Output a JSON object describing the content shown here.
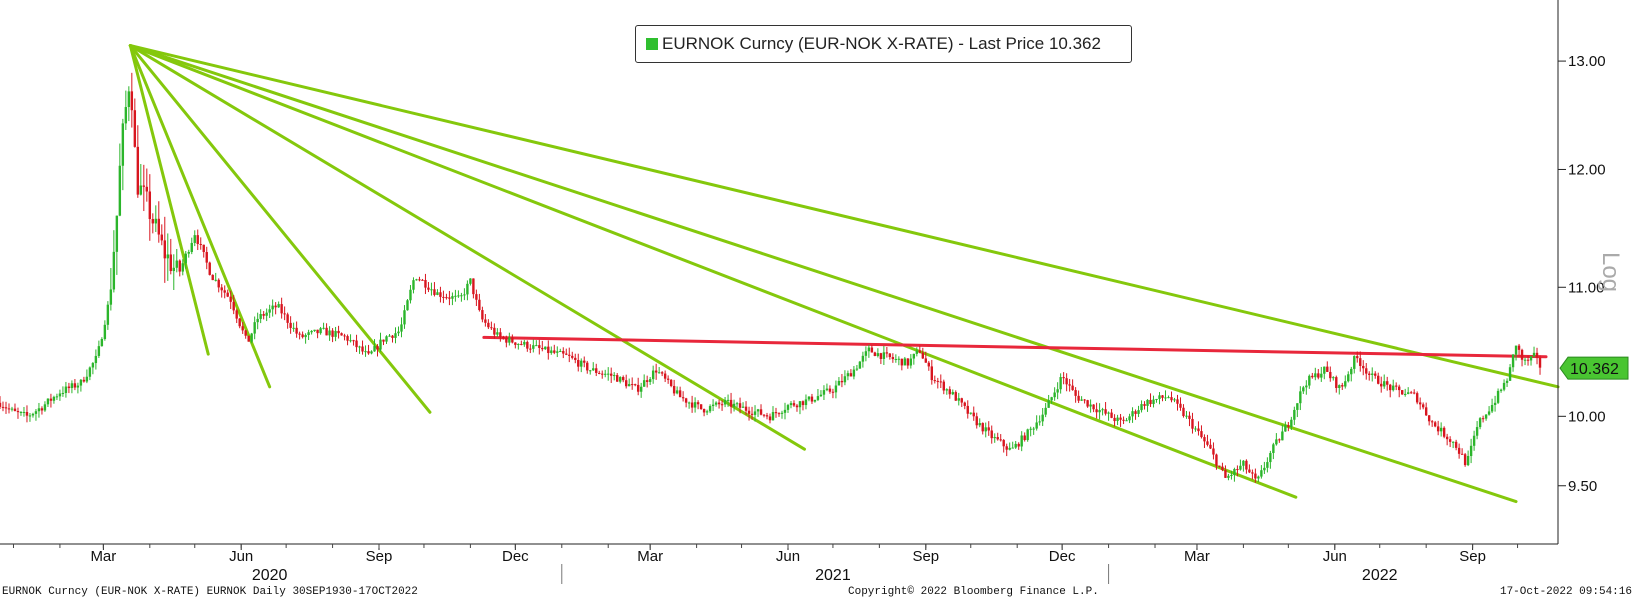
{
  "chart_data": {
    "type": "candlestick",
    "title": "EURNOK Curncy (EUR-NOK X-RATE) - Last Price 10.362",
    "scale_label": "Log",
    "last_price": 10.362,
    "last_price_label": "10.362",
    "y_scale": "log",
    "ylim": [
      9.1,
      13.6
    ],
    "y_ticks": [
      {
        "value": 13.0,
        "label": "13.00"
      },
      {
        "value": 12.0,
        "label": "12.00"
      },
      {
        "value": 11.0,
        "label": "11.00"
      },
      {
        "value": 10.0,
        "label": "10.00"
      },
      {
        "value": 9.5,
        "label": "9.50"
      }
    ],
    "x_start": "2019-12-23",
    "x_end": "2022-10-28",
    "x_ticks": [
      {
        "date": "2020-03-01",
        "label": "Mar"
      },
      {
        "date": "2020-06-01",
        "label": "Jun"
      },
      {
        "date": "2020-09-01",
        "label": "Sep"
      },
      {
        "date": "2020-12-01",
        "label": "Dec"
      },
      {
        "date": "2021-03-01",
        "label": "Mar"
      },
      {
        "date": "2021-06-01",
        "label": "Jun"
      },
      {
        "date": "2021-09-01",
        "label": "Sep"
      },
      {
        "date": "2021-12-01",
        "label": "Dec"
      },
      {
        "date": "2022-03-01",
        "label": "Mar"
      },
      {
        "date": "2022-06-01",
        "label": "Jun"
      },
      {
        "date": "2022-09-01",
        "label": "Sep"
      }
    ],
    "years": [
      {
        "label": "2020",
        "center": "2020-06-20"
      },
      {
        "label": "2021",
        "center": "2021-07-01"
      },
      {
        "label": "2022",
        "center": "2022-07-01"
      }
    ],
    "year_separators": [
      "2021-01-01",
      "2022-01-01"
    ],
    "price_path": [
      [
        "2019-12-23",
        10.1
      ],
      [
        "2020-01-01",
        10.03
      ],
      [
        "2020-01-10",
        10.0
      ],
      [
        "2020-01-20",
        10.07
      ],
      [
        "2020-02-01",
        10.18
      ],
      [
        "2020-02-15",
        10.25
      ],
      [
        "2020-02-26",
        10.45
      ],
      [
        "2020-03-05",
        10.9
      ],
      [
        "2020-03-10",
        11.6
      ],
      [
        "2020-03-13",
        12.2
      ],
      [
        "2020-03-16",
        12.55
      ],
      [
        "2020-03-19",
        12.9
      ],
      [
        "2020-03-23",
        11.9
      ],
      [
        "2020-03-30",
        11.7
      ],
      [
        "2020-04-10",
        11.3
      ],
      [
        "2020-04-20",
        11.1
      ],
      [
        "2020-05-01",
        11.45
      ],
      [
        "2020-05-12",
        11.1
      ],
      [
        "2020-05-25",
        10.9
      ],
      [
        "2020-06-05",
        10.55
      ],
      [
        "2020-06-12",
        10.75
      ],
      [
        "2020-06-25",
        10.85
      ],
      [
        "2020-07-10",
        10.6
      ],
      [
        "2020-07-25",
        10.65
      ],
      [
        "2020-08-10",
        10.6
      ],
      [
        "2020-08-25",
        10.45
      ],
      [
        "2020-09-05",
        10.6
      ],
      [
        "2020-09-15",
        10.65
      ],
      [
        "2020-09-25",
        11.1
      ],
      [
        "2020-10-10",
        10.95
      ],
      [
        "2020-10-25",
        10.9
      ],
      [
        "2020-11-01",
        11.05
      ],
      [
        "2020-11-08",
        10.75
      ],
      [
        "2020-11-20",
        10.6
      ],
      [
        "2020-12-05",
        10.55
      ],
      [
        "2020-12-20",
        10.5
      ],
      [
        "2021-01-05",
        10.45
      ],
      [
        "2021-01-20",
        10.35
      ],
      [
        "2021-02-05",
        10.3
      ],
      [
        "2021-02-20",
        10.2
      ],
      [
        "2021-03-05",
        10.35
      ],
      [
        "2021-03-20",
        10.15
      ],
      [
        "2021-04-05",
        10.05
      ],
      [
        "2021-04-20",
        10.1
      ],
      [
        "2021-05-05",
        10.05
      ],
      [
        "2021-05-20",
        10.0
      ],
      [
        "2021-06-01",
        10.08
      ],
      [
        "2021-06-15",
        10.12
      ],
      [
        "2021-07-01",
        10.2
      ],
      [
        "2021-07-15",
        10.35
      ],
      [
        "2021-07-25",
        10.5
      ],
      [
        "2021-08-05",
        10.45
      ],
      [
        "2021-08-20",
        10.4
      ],
      [
        "2021-08-28",
        10.5
      ],
      [
        "2021-09-05",
        10.3
      ],
      [
        "2021-09-20",
        10.15
      ],
      [
        "2021-10-01",
        10.0
      ],
      [
        "2021-10-15",
        9.85
      ],
      [
        "2021-10-28",
        9.75
      ],
      [
        "2021-11-10",
        9.9
      ],
      [
        "2021-11-20",
        10.05
      ],
      [
        "2021-12-01",
        10.3
      ],
      [
        "2021-12-10",
        10.15
      ],
      [
        "2021-12-25",
        10.05
      ],
      [
        "2022-01-10",
        9.95
      ],
      [
        "2022-01-25",
        10.1
      ],
      [
        "2022-02-10",
        10.15
      ],
      [
        "2022-02-25",
        9.95
      ],
      [
        "2022-03-10",
        9.75
      ],
      [
        "2022-03-20",
        9.55
      ],
      [
        "2022-04-01",
        9.65
      ],
      [
        "2022-04-10",
        9.52
      ],
      [
        "2022-04-20",
        9.75
      ],
      [
        "2022-05-01",
        9.95
      ],
      [
        "2022-05-12",
        10.25
      ],
      [
        "2022-05-25",
        10.35
      ],
      [
        "2022-06-05",
        10.2
      ],
      [
        "2022-06-15",
        10.45
      ],
      [
        "2022-06-25",
        10.3
      ],
      [
        "2022-07-10",
        10.2
      ],
      [
        "2022-07-25",
        10.15
      ],
      [
        "2022-08-05",
        9.95
      ],
      [
        "2022-08-20",
        9.8
      ],
      [
        "2022-08-28",
        9.65
      ],
      [
        "2022-09-05",
        9.95
      ],
      [
        "2022-09-15",
        10.1
      ],
      [
        "2022-09-25",
        10.3
      ],
      [
        "2022-09-30",
        10.55
      ],
      [
        "2022-10-05",
        10.4
      ],
      [
        "2022-10-12",
        10.45
      ],
      [
        "2022-10-17",
        10.36
      ]
    ],
    "trendlines": [
      {
        "color": "#84c80c",
        "from": [
          "2020-03-19",
          13.15
        ],
        "to": [
          "2020-05-10",
          10.47
        ]
      },
      {
        "color": "#84c80c",
        "from": [
          "2020-03-19",
          13.15
        ],
        "to": [
          "2020-06-20",
          10.22
        ]
      },
      {
        "color": "#84c80c",
        "from": [
          "2020-03-19",
          13.15
        ],
        "to": [
          "2020-10-05",
          10.03
        ]
      },
      {
        "color": "#84c80c",
        "from": [
          "2020-03-19",
          13.15
        ],
        "to": [
          "2021-06-12",
          9.76
        ]
      },
      {
        "color": "#84c80c",
        "from": [
          "2020-03-19",
          13.15
        ],
        "to": [
          "2022-05-06",
          9.42
        ]
      },
      {
        "color": "#84c80c",
        "from": [
          "2020-03-19",
          13.15
        ],
        "to": [
          "2022-09-30",
          9.39
        ]
      },
      {
        "color": "#84c80c",
        "from": [
          "2020-03-19",
          13.15
        ],
        "to": [
          "2022-10-28",
          10.22
        ]
      },
      {
        "color": "#e8273b",
        "from": [
          "2020-11-10",
          10.6
        ],
        "to": [
          "2022-10-20",
          10.45
        ]
      }
    ],
    "candle_up_color": "#2bb52b",
    "candle_down_color": "#d8151f",
    "last_price_color": "#49c531"
  },
  "legend": {
    "label": "EURNOK Curncy (EUR-NOK X-RATE) - Last Price 10.362",
    "swatch_color": "#2fbf2f"
  },
  "footer": {
    "left": "EURNOK Curncy (EUR-NOK X-RATE) EURNOK  Daily 30SEP1930-17OCT2022",
    "center": "Copyright© 2022 Bloomberg Finance L.P.",
    "right": "17-Oct-2022 09:54:16"
  }
}
